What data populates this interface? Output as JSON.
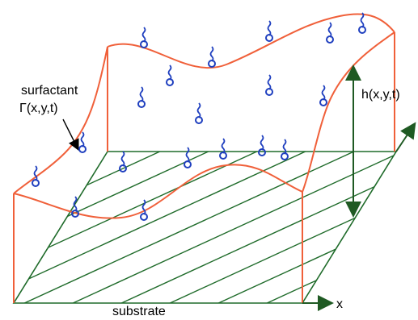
{
  "labels": {
    "surfactant": "surfactant",
    "gamma": "Γ(x,y,t)",
    "height": "h(x,y,t)",
    "substrate": "substrate",
    "x_axis": "x"
  },
  "colors": {
    "film_outline": "#f0603a",
    "surfactant_molecule": "#1f3fbf",
    "substrate_line": "#1f6b2a",
    "axis_arrow": "#1f5a23",
    "text": "#000000"
  }
}
